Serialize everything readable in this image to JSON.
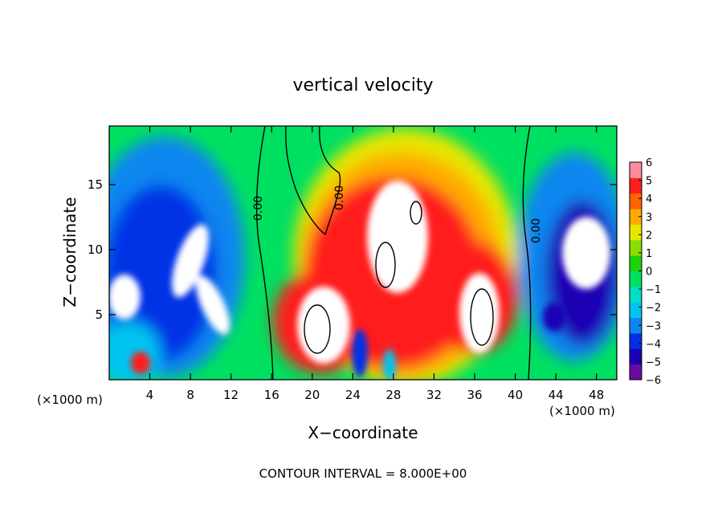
{
  "chart_data": {
    "type": "heatmap",
    "title": "vertical velocity",
    "xlabel": "X−coordinate",
    "ylabel": "Z−coordinate",
    "x_unit_left": "(×1000 m)",
    "x_unit_right": "(×1000 m)",
    "footer": "CONTOUR INTERVAL = 8.000E+00",
    "xlim": [
      0,
      50
    ],
    "ylim": [
      0,
      19.5
    ],
    "x_ticks": [
      "4",
      "8",
      "12",
      "16",
      "20",
      "24",
      "28",
      "32",
      "36",
      "40",
      "44",
      "48"
    ],
    "y_ticks": [
      "5",
      "10",
      "15"
    ],
    "contour_labels": [
      "0.00",
      "0.00",
      "0.00"
    ],
    "colorbar": {
      "ticks": [
        "6",
        "5",
        "4",
        "3",
        "2",
        "1",
        "0",
        "−1",
        "−2",
        "−3",
        "−4",
        "−5",
        "−6"
      ],
      "min": -6,
      "max": 6,
      "colors": [
        "#6a0aa0",
        "#1c00b4",
        "#0030e6",
        "#0f86f0",
        "#00c4f0",
        "#00e0c8",
        "#00e060",
        "#1ed20a",
        "#8cdc00",
        "#e6e600",
        "#ffaa00",
        "#ff6400",
        "#ff1e1e",
        "#ff8c9c"
      ]
    }
  }
}
